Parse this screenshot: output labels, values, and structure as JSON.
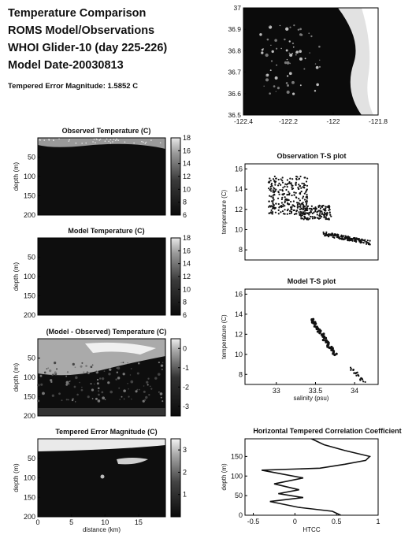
{
  "header": {
    "title_lines": [
      "Temperature Comparison",
      "ROMS Model/Observations",
      "WHOI Glider-10 (day 225-226)",
      "Model Date-20030813"
    ],
    "error_label": "Tempered Error Magnitude: 1.5852 C"
  },
  "chart_data": [
    {
      "type": "map",
      "id": "location_map",
      "title": "",
      "xlim": [
        -122.4,
        -121.8
      ],
      "ylim": [
        36.5,
        37.0
      ],
      "xticks": [
        "-122.4",
        "-122.2",
        "-122",
        "-121.8"
      ],
      "yticks": [
        "36.5",
        "36.6",
        "36.7",
        "36.8",
        "36.9",
        "37"
      ]
    },
    {
      "type": "heatmap",
      "id": "observed_temperature",
      "title": "Observed Temperature (C)",
      "ylabel": "depth (m)",
      "ylim": [
        200,
        0
      ],
      "yticks": [
        "50",
        "100",
        "150",
        "200"
      ],
      "colorbar": {
        "range": [
          6,
          18
        ],
        "ticks": [
          "6",
          "8",
          "10",
          "12",
          "14",
          "16",
          "18"
        ]
      }
    },
    {
      "type": "heatmap",
      "id": "model_temperature",
      "title": "Model Temperature (C)",
      "ylabel": "depth (m)",
      "ylim": [
        200,
        0
      ],
      "yticks": [
        "50",
        "100",
        "150",
        "200"
      ],
      "colorbar": {
        "range": [
          6,
          18
        ],
        "ticks": [
          "6",
          "8",
          "10",
          "12",
          "14",
          "16",
          "18"
        ]
      }
    },
    {
      "type": "heatmap",
      "id": "model_minus_observed",
      "title": "(Model - Observed) Temperature (C)",
      "ylabel": "depth (m)",
      "ylim": [
        200,
        0
      ],
      "yticks": [
        "50",
        "100",
        "150",
        "200"
      ],
      "colorbar": {
        "range": [
          -3.5,
          0.5
        ],
        "ticks": [
          "-3",
          "-2",
          "-1",
          "0"
        ]
      }
    },
    {
      "type": "heatmap",
      "id": "tempered_error_magnitude",
      "title": "Tempered Error Magnitude (C)",
      "xlabel": "distance (km)",
      "ylabel": "depth (m)",
      "xlim": [
        0,
        19
      ],
      "xticks": [
        "0",
        "5",
        "10",
        "15"
      ],
      "ylim": [
        200,
        0
      ],
      "yticks": [
        "50",
        "100",
        "150",
        "200"
      ],
      "colorbar": {
        "range": [
          0,
          3.5
        ],
        "ticks": [
          "1",
          "2",
          "3"
        ]
      }
    },
    {
      "type": "scatter",
      "id": "observation_ts",
      "title": "Observation T-S plot",
      "xlabel": "",
      "ylabel": "temperature (C)",
      "xlim": [
        32.6,
        34.3
      ],
      "ylim": [
        7,
        16.5
      ],
      "yticks": [
        "8",
        "10",
        "12",
        "14",
        "16"
      ],
      "clusters": [
        {
          "x_range": [
            32.9,
            33.4
          ],
          "y_range": [
            11.5,
            15.3
          ]
        },
        {
          "x_range": [
            33.3,
            33.7
          ],
          "y_range": [
            11.0,
            12.4
          ]
        },
        {
          "x_range": [
            33.6,
            34.2
          ],
          "y_range": [
            8.6,
            9.8
          ]
        }
      ]
    },
    {
      "type": "scatter",
      "id": "model_ts",
      "title": "Model T-S plot",
      "xlabel": "salinity (psu)",
      "ylabel": "temperature (C)",
      "xlim": [
        32.6,
        34.3
      ],
      "xticks": [
        "33",
        "33.5",
        "34"
      ],
      "ylim": [
        7,
        16.5
      ],
      "yticks": [
        "8",
        "10",
        "12",
        "14",
        "16"
      ],
      "segments": [
        {
          "x": [
            33.45,
            33.75
          ],
          "y": [
            13.5,
            10.0
          ]
        },
        {
          "x": [
            33.95,
            34.12
          ],
          "y": [
            8.6,
            7.3
          ]
        }
      ]
    },
    {
      "type": "line",
      "id": "htcc_profile",
      "title": "Horizontal Tempered Correlation Coefficient",
      "xlabel": "HTCC",
      "ylabel": "depth (m)",
      "xlim": [
        -0.6,
        1.0
      ],
      "xticks": [
        "-0.5",
        "0",
        "0.5",
        "1"
      ],
      "ylim": [
        195,
        0
      ],
      "yticks": [
        "0",
        "50",
        "100",
        "150"
      ],
      "series": [
        {
          "x": [
            0.55,
            0.45,
            0.05,
            -0.3,
            0.1,
            -0.2,
            0.05,
            -0.25,
            0.1,
            -0.4,
            0.3,
            0.6,
            0.85,
            0.9,
            0.6,
            0.35,
            0.2
          ],
          "y": [
            0,
            10,
            20,
            35,
            45,
            55,
            65,
            80,
            95,
            115,
            120,
            130,
            140,
            150,
            165,
            180,
            195
          ]
        }
      ]
    }
  ]
}
